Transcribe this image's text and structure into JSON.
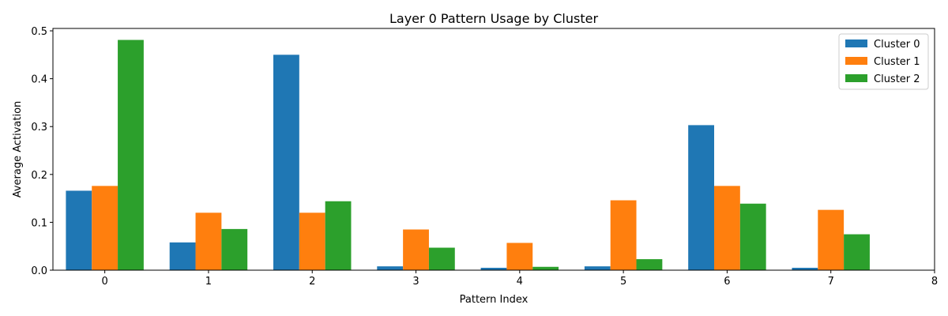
{
  "chart_data": {
    "type": "bar",
    "title": "Layer 0 Pattern Usage by Cluster",
    "xlabel": "Pattern Index",
    "ylabel": "Average Activation",
    "categories": [
      "0",
      "1",
      "2",
      "3",
      "4",
      "5",
      "6",
      "7"
    ],
    "xticks": [
      "0",
      "1",
      "2",
      "3",
      "4",
      "5",
      "6",
      "7",
      "8"
    ],
    "xlim": [
      -0.5,
      8.0
    ],
    "yticks": [
      "0.0",
      "0.1",
      "0.2",
      "0.3",
      "0.4",
      "0.5"
    ],
    "ylim": [
      0,
      0.505
    ],
    "grid": false,
    "legend_position": "top-right",
    "series": [
      {
        "name": "Cluster 0",
        "color": "#1f77b4",
        "values": [
          0.166,
          0.058,
          0.45,
          0.008,
          0.005,
          0.008,
          0.303,
          0.005
        ]
      },
      {
        "name": "Cluster 1",
        "color": "#ff7f0e",
        "values": [
          0.176,
          0.12,
          0.12,
          0.085,
          0.057,
          0.146,
          0.176,
          0.126
        ]
      },
      {
        "name": "Cluster 2",
        "color": "#2ca02c",
        "values": [
          0.481,
          0.086,
          0.144,
          0.047,
          0.007,
          0.023,
          0.139,
          0.075
        ]
      }
    ]
  }
}
